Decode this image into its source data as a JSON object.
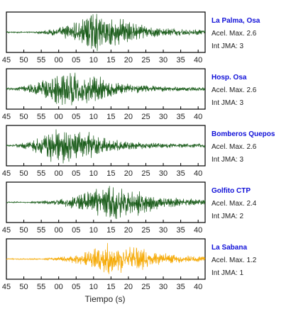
{
  "colors": {
    "dark_green": "#1a5c1a",
    "orange": "#f5a800",
    "station_name": "#1010d8",
    "frame": "#000000"
  },
  "chart_data": {
    "type": "line",
    "xlabel": "Tiempo (s)",
    "x_tick_labels": [
      "45",
      "50",
      "55",
      "00",
      "05",
      "10",
      "15",
      "20",
      "25",
      "30",
      "35",
      "40"
    ],
    "grid": false,
    "panels": [
      {
        "station": "La Palma, Osa",
        "accel": "Acel. Max. 2.6",
        "jma": "Int JMA: 3",
        "color": "#1a5c1a",
        "onset_s": 53,
        "peak_s": 10,
        "peak_amplitude": 1.0
      },
      {
        "station": "Hosp. Osa",
        "accel": "Acel. Max. 2.6",
        "jma": "Int JMA: 3",
        "color": "#1a5c1a",
        "onset_s": 45,
        "peak_s": 2,
        "peak_amplitude": 1.0
      },
      {
        "station": "Bomberos Quepos",
        "accel": "Acel. Max. 2.6",
        "jma": "Int JMA: 3",
        "color": "#1a5c1a",
        "onset_s": 46,
        "peak_s": 0,
        "peak_amplitude": 1.0
      },
      {
        "station": "Golfito CTP",
        "accel": "Acel. Max. 2.4",
        "jma": "Int JMA: 2",
        "color": "#1a5c1a",
        "onset_s": 52,
        "peak_s": 15,
        "peak_amplitude": 0.95
      },
      {
        "station": "La Sabana",
        "accel": "Acel. Max. 1.2",
        "jma": "Int JMA: 1",
        "color": "#f5a800",
        "onset_s": 56,
        "peak_s": 15,
        "peak_amplitude": 0.9
      }
    ]
  }
}
